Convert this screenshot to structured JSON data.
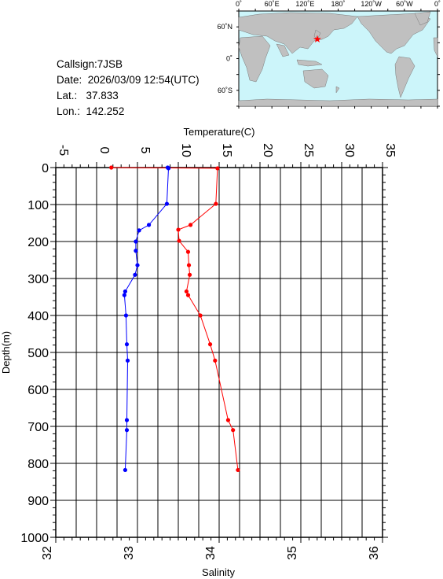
{
  "info": {
    "callsign": "Callsign:7JSB",
    "date": "Date:  2026/03/09 12:54(UTC)",
    "lat": "Lat.:   37.833",
    "lon": "Lon.:  142.252"
  },
  "map": {
    "top_labels": [
      "0˚",
      "60˚E",
      "120˚E",
      "180˚",
      "120˚W",
      "60˚W",
      "0˚"
    ],
    "left_labels": [
      "60˚N",
      "0˚",
      "60˚S"
    ],
    "ocean_color": "#ccf5fa",
    "land_color": "#c0c0c0",
    "marker_color": "#ff0000",
    "station_lon": 142.252,
    "station_lat": 37.833
  },
  "chart_data": {
    "type": "line",
    "top_axis": {
      "label": "Temperature(C)",
      "range": [
        -5,
        35
      ],
      "ticks": [
        "-5",
        "0",
        "5",
        "10",
        "15",
        "20",
        "25",
        "30",
        "35"
      ]
    },
    "bottom_axis": {
      "label": "Salinity",
      "range": [
        32,
        36
      ],
      "ticks": [
        "32",
        "33",
        "34",
        "35",
        "36"
      ]
    },
    "y_axis": {
      "label": "Depth(m)",
      "range": [
        0,
        1000
      ],
      "inverted": true,
      "ticks": [
        "0",
        "100",
        "200",
        "300",
        "400",
        "500",
        "600",
        "700",
        "800",
        "900",
        "1000"
      ]
    },
    "grid": true,
    "series": [
      {
        "axis": "temperature",
        "color": "#ff0000",
        "points": [
          [
            1.8,
            0
          ],
          [
            14.8,
            2
          ],
          [
            14.6,
            98
          ],
          [
            11.5,
            155
          ],
          [
            10.0,
            168
          ],
          [
            10.1,
            198
          ],
          [
            11.2,
            228
          ],
          [
            11.3,
            264
          ],
          [
            11.4,
            290
          ],
          [
            11.0,
            335
          ],
          [
            11.2,
            345
          ],
          [
            12.7,
            400
          ],
          [
            13.9,
            478
          ],
          [
            14.5,
            522
          ],
          [
            16.1,
            683
          ],
          [
            16.7,
            710
          ],
          [
            17.3,
            818
          ]
        ]
      },
      {
        "axis": "salinity",
        "color": "#0000ff",
        "points": [
          [
            33.37,
            0
          ],
          [
            33.38,
            2
          ],
          [
            33.36,
            98
          ],
          [
            33.14,
            155
          ],
          [
            33.02,
            170
          ],
          [
            32.98,
            200
          ],
          [
            32.98,
            225
          ],
          [
            33.0,
            264
          ],
          [
            32.97,
            290
          ],
          [
            32.85,
            335
          ],
          [
            32.84,
            345
          ],
          [
            32.86,
            400
          ],
          [
            32.87,
            478
          ],
          [
            32.88,
            522
          ],
          [
            32.87,
            683
          ],
          [
            32.87,
            710
          ],
          [
            32.85,
            818
          ]
        ]
      }
    ]
  }
}
